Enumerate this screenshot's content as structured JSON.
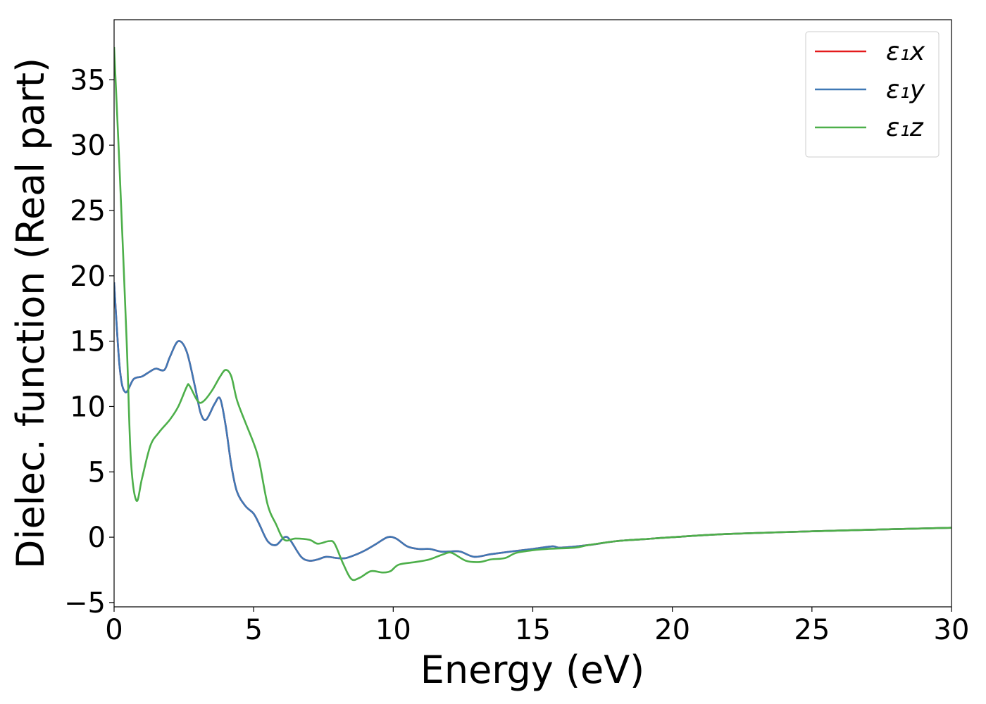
{
  "chart_data": {
    "type": "line",
    "xlabel": "Energy (eV)",
    "ylabel": "Dielec. function (Real part)",
    "xlim": [
      0,
      30
    ],
    "xticks": [
      0,
      5,
      10,
      15,
      20,
      25,
      30
    ],
    "ylim": [
      -5.33,
      39.6
    ],
    "yticks": [
      {
        "value": -5,
        "label": "−5"
      },
      0,
      5,
      10,
      15,
      20,
      25,
      30,
      35
    ],
    "legend": "upper right",
    "series": [
      {
        "name": "ε₁x",
        "color": "#e41a1c",
        "x": [
          0,
          0.2,
          0.4,
          0.7,
          1.0,
          1.3,
          1.5,
          1.8,
          2.0,
          2.3,
          2.6,
          2.9,
          3.1,
          3.3,
          3.6,
          3.8,
          4.0,
          4.2,
          4.4,
          4.7,
          5.0,
          5.2,
          5.5,
          5.8,
          6.1,
          6.3,
          6.7,
          7.0,
          7.3,
          7.6,
          8.0,
          8.3,
          8.7,
          9.0,
          9.4,
          9.8,
          10.1,
          10.5,
          10.9,
          11.3,
          11.7,
          12.0,
          12.4,
          12.9,
          13.5,
          14.2,
          15,
          15.7,
          16,
          17,
          18,
          19,
          20,
          22,
          25,
          28,
          30
        ],
        "values": [
          19.5,
          13,
          11.1,
          12.1,
          12.3,
          12.7,
          12.9,
          12.8,
          13.8,
          15.0,
          14.2,
          11.5,
          9.5,
          9.0,
          10.2,
          10.6,
          8.5,
          5.5,
          3.5,
          2.4,
          1.8,
          1.0,
          -0.3,
          -0.6,
          0.0,
          -0.2,
          -1.5,
          -1.8,
          -1.7,
          -1.5,
          -1.6,
          -1.6,
          -1.3,
          -1.0,
          -0.5,
          0.0,
          -0.1,
          -0.7,
          -0.9,
          -0.9,
          -1.1,
          -1.1,
          -1.1,
          -1.5,
          -1.3,
          -1.1,
          -0.9,
          -0.7,
          -0.8,
          -0.6,
          -0.3,
          -0.15,
          0.0,
          0.25,
          0.45,
          0.62,
          0.72
        ]
      },
      {
        "name": "ε₁y",
        "color": "#3f78b5",
        "x": [
          0,
          0.2,
          0.4,
          0.7,
          1.0,
          1.3,
          1.5,
          1.8,
          2.0,
          2.3,
          2.6,
          2.9,
          3.1,
          3.3,
          3.6,
          3.8,
          4.0,
          4.2,
          4.4,
          4.7,
          5.0,
          5.2,
          5.5,
          5.8,
          6.1,
          6.3,
          6.7,
          7.0,
          7.3,
          7.6,
          8.0,
          8.3,
          8.7,
          9.0,
          9.4,
          9.8,
          10.1,
          10.5,
          10.9,
          11.3,
          11.7,
          12.0,
          12.4,
          12.9,
          13.5,
          14.2,
          15,
          15.7,
          16,
          17,
          18,
          19,
          20,
          22,
          25,
          28,
          30
        ],
        "values": [
          19.5,
          13,
          11.1,
          12.1,
          12.3,
          12.7,
          12.9,
          12.8,
          13.8,
          15.0,
          14.2,
          11.5,
          9.5,
          9.0,
          10.2,
          10.6,
          8.5,
          5.5,
          3.5,
          2.4,
          1.8,
          1.0,
          -0.3,
          -0.6,
          0.0,
          -0.2,
          -1.5,
          -1.8,
          -1.7,
          -1.5,
          -1.6,
          -1.6,
          -1.3,
          -1.0,
          -0.5,
          0.0,
          -0.1,
          -0.7,
          -0.9,
          -0.9,
          -1.1,
          -1.1,
          -1.1,
          -1.5,
          -1.3,
          -1.1,
          -0.9,
          -0.7,
          -0.8,
          -0.6,
          -0.3,
          -0.15,
          0.0,
          0.25,
          0.45,
          0.62,
          0.72
        ]
      },
      {
        "name": "ε₁z",
        "color": "#4daf4a",
        "x": [
          0,
          0.2,
          0.45,
          0.6,
          0.8,
          1.0,
          1.3,
          1.6,
          2.0,
          2.3,
          2.6,
          2.7,
          3.0,
          3.2,
          3.5,
          3.8,
          4.0,
          4.2,
          4.4,
          4.7,
          5.0,
          5.2,
          5.5,
          5.8,
          6.1,
          6.5,
          7.0,
          7.3,
          7.7,
          7.9,
          8.2,
          8.5,
          8.8,
          9.2,
          9.6,
          9.9,
          10.2,
          10.8,
          11.3,
          11.8,
          12.1,
          12.6,
          13.1,
          13.5,
          14.0,
          14.4,
          15,
          15.5,
          16.5,
          17,
          18,
          19,
          20,
          22,
          25,
          28,
          30
        ],
        "values": [
          37.5,
          28,
          15,
          6,
          2.8,
          4.5,
          7.0,
          8.0,
          9.0,
          10.0,
          11.5,
          11.6,
          10.4,
          10.4,
          11.2,
          12.3,
          12.8,
          12.3,
          10.5,
          8.8,
          7.2,
          5.8,
          2.5,
          1.0,
          -0.2,
          -0.1,
          -0.2,
          -0.5,
          -0.3,
          -0.5,
          -2.0,
          -3.2,
          -3.1,
          -2.6,
          -2.7,
          -2.6,
          -2.1,
          -1.9,
          -1.7,
          -1.3,
          -1.2,
          -1.8,
          -1.9,
          -1.7,
          -1.6,
          -1.2,
          -1.0,
          -0.9,
          -0.8,
          -0.6,
          -0.3,
          -0.15,
          0.0,
          0.25,
          0.45,
          0.62,
          0.72
        ]
      }
    ]
  }
}
